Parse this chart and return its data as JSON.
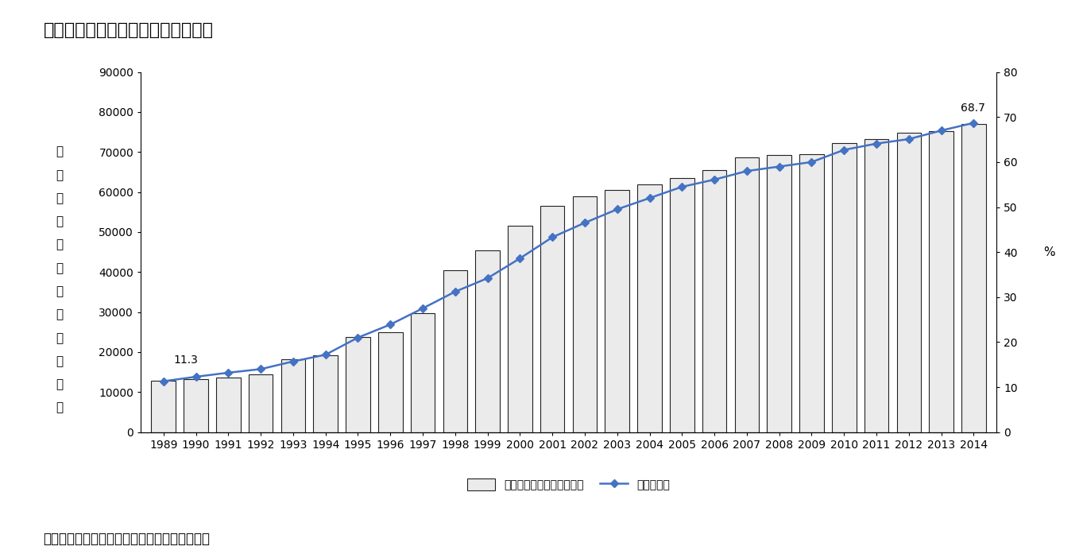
{
  "title": "図１日本における医薬分業率の動向",
  "subtitle": "資料）日本薬剤師会ホームページより筆者作成",
  "years": [
    1989,
    1990,
    1991,
    1992,
    1993,
    1994,
    1995,
    1996,
    1997,
    1998,
    1999,
    2000,
    2001,
    2002,
    2003,
    2004,
    2005,
    2006,
    2007,
    2008,
    2009,
    2010,
    2011,
    2012,
    2013,
    2014
  ],
  "prescriptions": [
    12800,
    13200,
    13700,
    14500,
    18200,
    19200,
    23800,
    25000,
    29800,
    40500,
    45500,
    51500,
    56500,
    59000,
    60500,
    62000,
    63500,
    65500,
    68700,
    69200,
    69500,
    72200,
    73200,
    74800,
    75300,
    77000
  ],
  "separation_rate": [
    11.3,
    12.3,
    13.2,
    14.0,
    15.7,
    17.2,
    21.0,
    23.9,
    27.5,
    31.2,
    34.2,
    38.6,
    43.3,
    46.5,
    49.5,
    52.0,
    54.5,
    56.1,
    58.0,
    59.0,
    60.0,
    62.7,
    64.1,
    65.1,
    67.0,
    68.7
  ],
  "bar_color": "#ebebeb",
  "bar_edgecolor": "#222222",
  "line_color": "#4472c4",
  "marker_color": "#4472c4",
  "ylabel_left_chars": [
    "処",
    "方",
    "せ",
    "ん",
    "枚",
    "数",
    "（",
    "万",
    "枚",
    "／",
    "年",
    "）"
  ],
  "ylabel_right": "%",
  "ylim_left": [
    0,
    90000
  ],
  "ylim_right": [
    0,
    80
  ],
  "yticks_left": [
    0,
    10000,
    20000,
    30000,
    40000,
    50000,
    60000,
    70000,
    80000,
    90000
  ],
  "yticks_right": [
    0,
    10,
    20,
    30,
    40,
    50,
    60,
    70,
    80
  ],
  "annotation_1989": "11.3",
  "annotation_2014": "68.7",
  "legend_bar_label": "処方せん枚数（万枚／年）",
  "legend_line_label": "医薬分業率",
  "background_color": "#ffffff",
  "title_fontsize": 16,
  "tick_fontsize": 10,
  "label_fontsize": 11,
  "annotation_fontsize": 10
}
